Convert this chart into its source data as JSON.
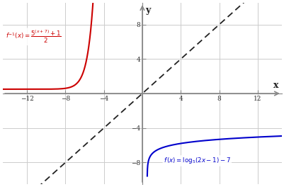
{
  "title": "",
  "bg_color": "#ffffff",
  "grid_color": "#cccccc",
  "axis_color": "#888888",
  "xlim": [
    -14.5,
    14.5
  ],
  "ylim": [
    -10.5,
    10.5
  ],
  "xticks": [
    -12,
    -8,
    -4,
    4,
    8,
    12
  ],
  "yticks": [
    -8,
    -4,
    4,
    8
  ],
  "dashed_line_color": "#222222",
  "blue_color": "#0000cc",
  "red_color": "#cc0000",
  "label_f": "$f\\,(x) = \\log_5(2x-1)-7$",
  "label_finv": "$f^{-1}(x) = \\dfrac{5^{(x+7)}+1}{2}$",
  "xlabel": "x",
  "ylabel": "y"
}
